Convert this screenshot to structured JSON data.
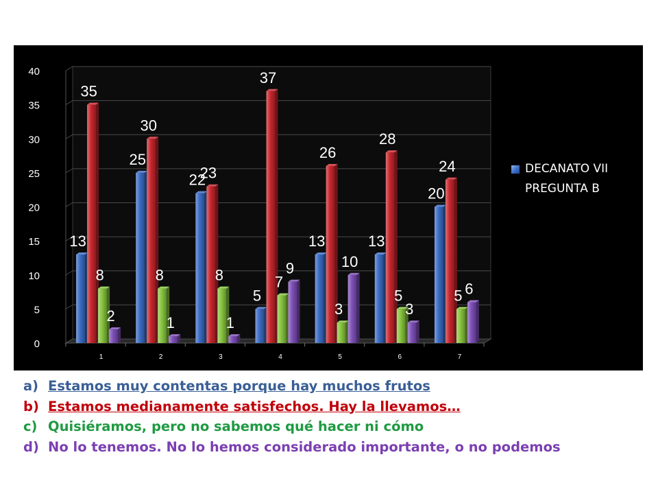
{
  "chart_data": {
    "type": "bar",
    "title": "",
    "xlabel": "",
    "ylabel": "",
    "ylim": [
      0,
      40
    ],
    "yticks": [
      "0",
      "5",
      "10",
      "15",
      "20",
      "25",
      "30",
      "35",
      "40"
    ],
    "categories": [
      "1",
      "2",
      "3",
      "4",
      "5",
      "6",
      "7"
    ],
    "series": [
      {
        "name": "a",
        "color": "#3b6cc4",
        "values": [
          13,
          25,
          22,
          5,
          13,
          13,
          20
        ]
      },
      {
        "name": "b",
        "color": "#c8262d",
        "values": [
          35,
          30,
          23,
          37,
          26,
          28,
          24
        ]
      },
      {
        "name": "c",
        "color": "#86c43e",
        "values": [
          8,
          8,
          8,
          7,
          3,
          5,
          5
        ]
      },
      {
        "name": "d",
        "color": "#7d4fb8",
        "values": [
          2,
          1,
          1,
          9,
          10,
          3,
          6
        ]
      }
    ],
    "grid": true,
    "legend_position": "right",
    "legend": [
      "DECANATO VII PREGUNTA B"
    ],
    "style": "3d-column"
  },
  "answers": [
    {
      "letter": "a)",
      "text": "Estamos muy contentas porque hay muchos frutos",
      "color": "#3a5f96"
    },
    {
      "letter": "b)",
      "text": "Estamos medianamente satisfechos. Hay la llevamos…",
      "color": "#c0000a"
    },
    {
      "letter": "c)",
      "text": "Quisiéramos, pero no sabemos qué hacer ni cómo",
      "color": "#1f9a42"
    },
    {
      "letter": "d)",
      "text": "No lo tenemos. No lo hemos considerado importante, o no podemos",
      "color": "#7b3fb2"
    }
  ]
}
